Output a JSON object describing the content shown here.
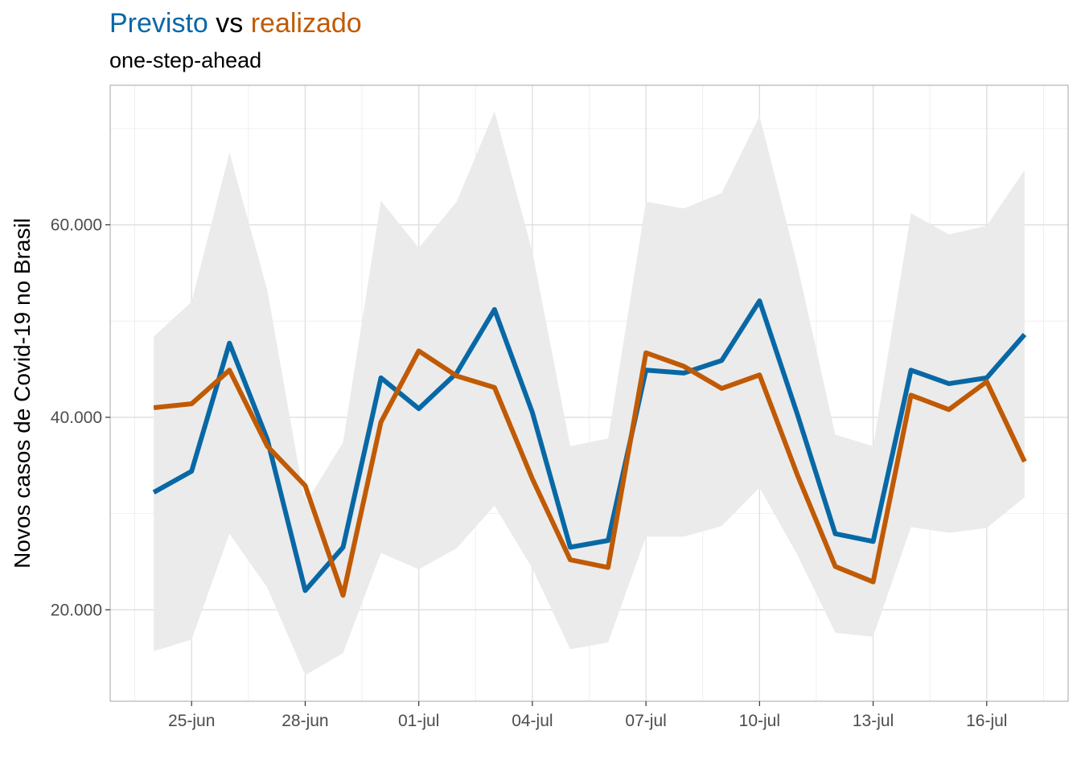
{
  "chart_data": {
    "type": "line",
    "title": {
      "part1": "Previsto",
      "part2": " vs ",
      "part3": "realizado"
    },
    "subtitle": "one-step-ahead",
    "xlabel": "",
    "ylabel": "Novos casos de Covid-19 no Brasil",
    "x": [
      "2020-06-24",
      "2020-06-25",
      "2020-06-26",
      "2020-06-27",
      "2020-06-28",
      "2020-06-29",
      "2020-06-30",
      "2020-07-01",
      "2020-07-02",
      "2020-07-03",
      "2020-07-04",
      "2020-07-05",
      "2020-07-06",
      "2020-07-07",
      "2020-07-08",
      "2020-07-09",
      "2020-07-10",
      "2020-07-11",
      "2020-07-12",
      "2020-07-13",
      "2020-07-14",
      "2020-07-15",
      "2020-07-16",
      "2020-07-17"
    ],
    "x_ticks": [
      {
        "date": "2020-06-25",
        "label": "25-jun"
      },
      {
        "date": "2020-06-28",
        "label": "28-jun"
      },
      {
        "date": "2020-07-01",
        "label": "01-jul"
      },
      {
        "date": "2020-07-04",
        "label": "04-jul"
      },
      {
        "date": "2020-07-07",
        "label": "07-jul"
      },
      {
        "date": "2020-07-10",
        "label": "10-jul"
      },
      {
        "date": "2020-07-13",
        "label": "13-jul"
      },
      {
        "date": "2020-07-16",
        "label": "16-jul"
      }
    ],
    "y_ticks": [
      {
        "value": 20000,
        "label": "20.000"
      },
      {
        "value": 40000,
        "label": "40.000"
      },
      {
        "value": 60000,
        "label": "60.000"
      }
    ],
    "ylim": [
      10500,
      74500
    ],
    "grid": true,
    "series": [
      {
        "name": "Previsto",
        "color": "#0868a5",
        "values": [
          32200,
          34400,
          47700,
          37700,
          22000,
          26500,
          44100,
          40900,
          44600,
          51200,
          40500,
          26500,
          27200,
          44900,
          44600,
          45900,
          52100,
          40300,
          27900,
          27100,
          44900,
          43500,
          44100,
          48600
        ]
      },
      {
        "name": "realizado",
        "color": "#c05a05",
        "values": [
          41000,
          41400,
          44900,
          37000,
          32900,
          21500,
          39500,
          46900,
          44300,
          43100,
          33600,
          25200,
          24400,
          46700,
          45300,
          43000,
          44400,
          34000,
          24500,
          22900,
          42300,
          40800,
          43700,
          35400
        ]
      }
    ],
    "band": {
      "color": "#ebebeb",
      "lower": [
        15700,
        16900,
        27900,
        22300,
        13200,
        15500,
        25900,
        24200,
        26400,
        30800,
        24300,
        15900,
        16600,
        27600,
        27600,
        28700,
        32700,
        25700,
        17600,
        17200,
        28600,
        28000,
        28500,
        31700
      ],
      "upper": [
        48400,
        52000,
        67500,
        53200,
        31000,
        37400,
        62500,
        57600,
        62400,
        71800,
        57200,
        37000,
        37800,
        62400,
        61700,
        63300,
        71300,
        55800,
        38200,
        37000,
        61200,
        59000,
        59900,
        65700
      ]
    }
  }
}
